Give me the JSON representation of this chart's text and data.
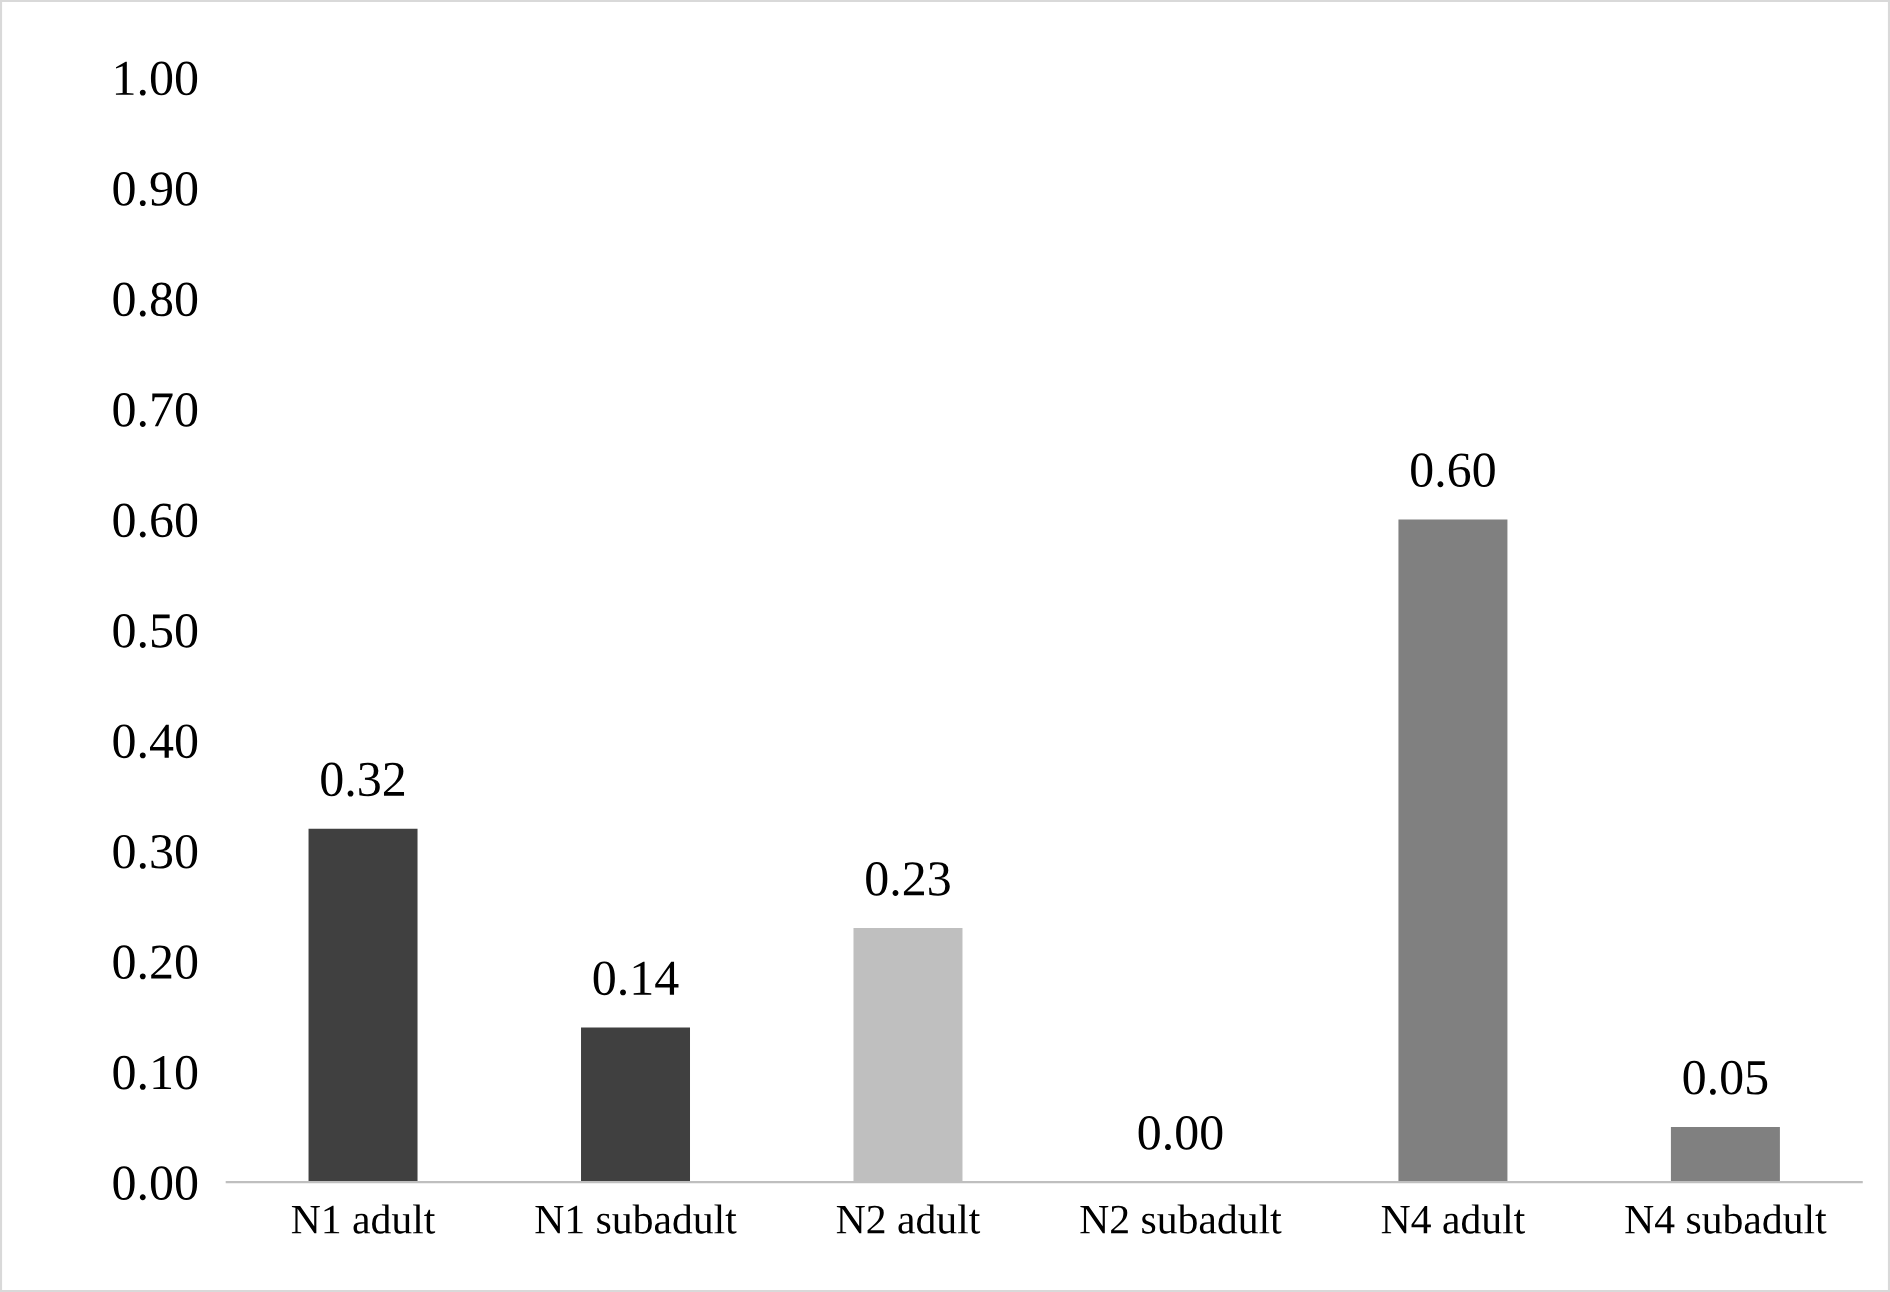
{
  "chart_data": {
    "type": "bar",
    "categories": [
      "N1 adult",
      "N1 subadult",
      "N2 adult",
      "N2 subadult",
      "N4 adult",
      "N4 subadult"
    ],
    "values": [
      0.32,
      0.14,
      0.23,
      0.0,
      0.6,
      0.05
    ],
    "colors": [
      "#404040",
      "#404040",
      "#bfbfbf",
      "#bfbfbf",
      "#808080",
      "#808080"
    ],
    "value_labels": [
      "0.32",
      "0.14",
      "0.23",
      "0.00",
      "0.60",
      "0.05"
    ],
    "ylim": [
      0,
      1
    ],
    "yticks": [
      {
        "value": 0,
        "label": "0.00"
      },
      {
        "value": 0.1,
        "label": "0.10"
      },
      {
        "value": 0.2,
        "label": "0.20"
      },
      {
        "value": 0.3,
        "label": "0.30"
      },
      {
        "value": 0.4,
        "label": "0.40"
      },
      {
        "value": 0.5,
        "label": "0.50"
      },
      {
        "value": 0.6,
        "label": "0.60"
      },
      {
        "value": 0.7,
        "label": "0.70"
      },
      {
        "value": 0.8,
        "label": "0.80"
      },
      {
        "value": 0.9,
        "label": "0.90"
      },
      {
        "value": 1,
        "label": "1.00"
      }
    ],
    "grid": false,
    "legend": false
  }
}
